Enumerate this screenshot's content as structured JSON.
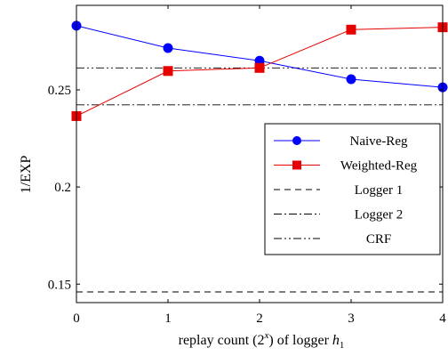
{
  "chart_data": {
    "type": "line",
    "xlabel": "replay count (2^x) of logger h1",
    "xlabel_parts": {
      "pre": "replay count (2",
      "sup": "x",
      "mid": ") of logger ",
      "var": "h",
      "sub": "1"
    },
    "ylabel": "1/EXP",
    "xlim": [
      0,
      4
    ],
    "ylim": [
      0.1405,
      0.2935
    ],
    "x_ticks": [
      0,
      1,
      2,
      3,
      4
    ],
    "x_tick_labels": [
      "0",
      "1",
      "2",
      "3",
      "4"
    ],
    "y_ticks": [
      0.15,
      0.2,
      0.25
    ],
    "y_tick_labels": [
      "0.15",
      "0.2",
      "0.25"
    ],
    "grid": false,
    "legend_position": "right",
    "series": [
      {
        "name": "Naive-Reg",
        "x": [
          0,
          1,
          2,
          3,
          4
        ],
        "values": [
          0.283,
          0.2715,
          0.265,
          0.2555,
          0.2513
        ],
        "color": "#0000ff",
        "marker": "circle",
        "style": "solid"
      },
      {
        "name": "Weighted-Reg",
        "x": [
          0,
          1,
          2,
          3,
          4
        ],
        "values": [
          0.2365,
          0.2597,
          0.2613,
          0.281,
          0.2822
        ],
        "color": "#e60000",
        "marker": "square",
        "style": "solid"
      },
      {
        "name": "Logger 1",
        "values": [
          0.146
        ],
        "color": "#000000",
        "style": "dashed",
        "horizontal": true
      },
      {
        "name": "Logger 2",
        "values": [
          0.2423
        ],
        "color": "#000000",
        "style": "dashdot",
        "horizontal": true
      },
      {
        "name": "CRF",
        "values": [
          0.2613
        ],
        "color": "#000000",
        "style": "dashdotdot",
        "horizontal": true
      }
    ]
  }
}
